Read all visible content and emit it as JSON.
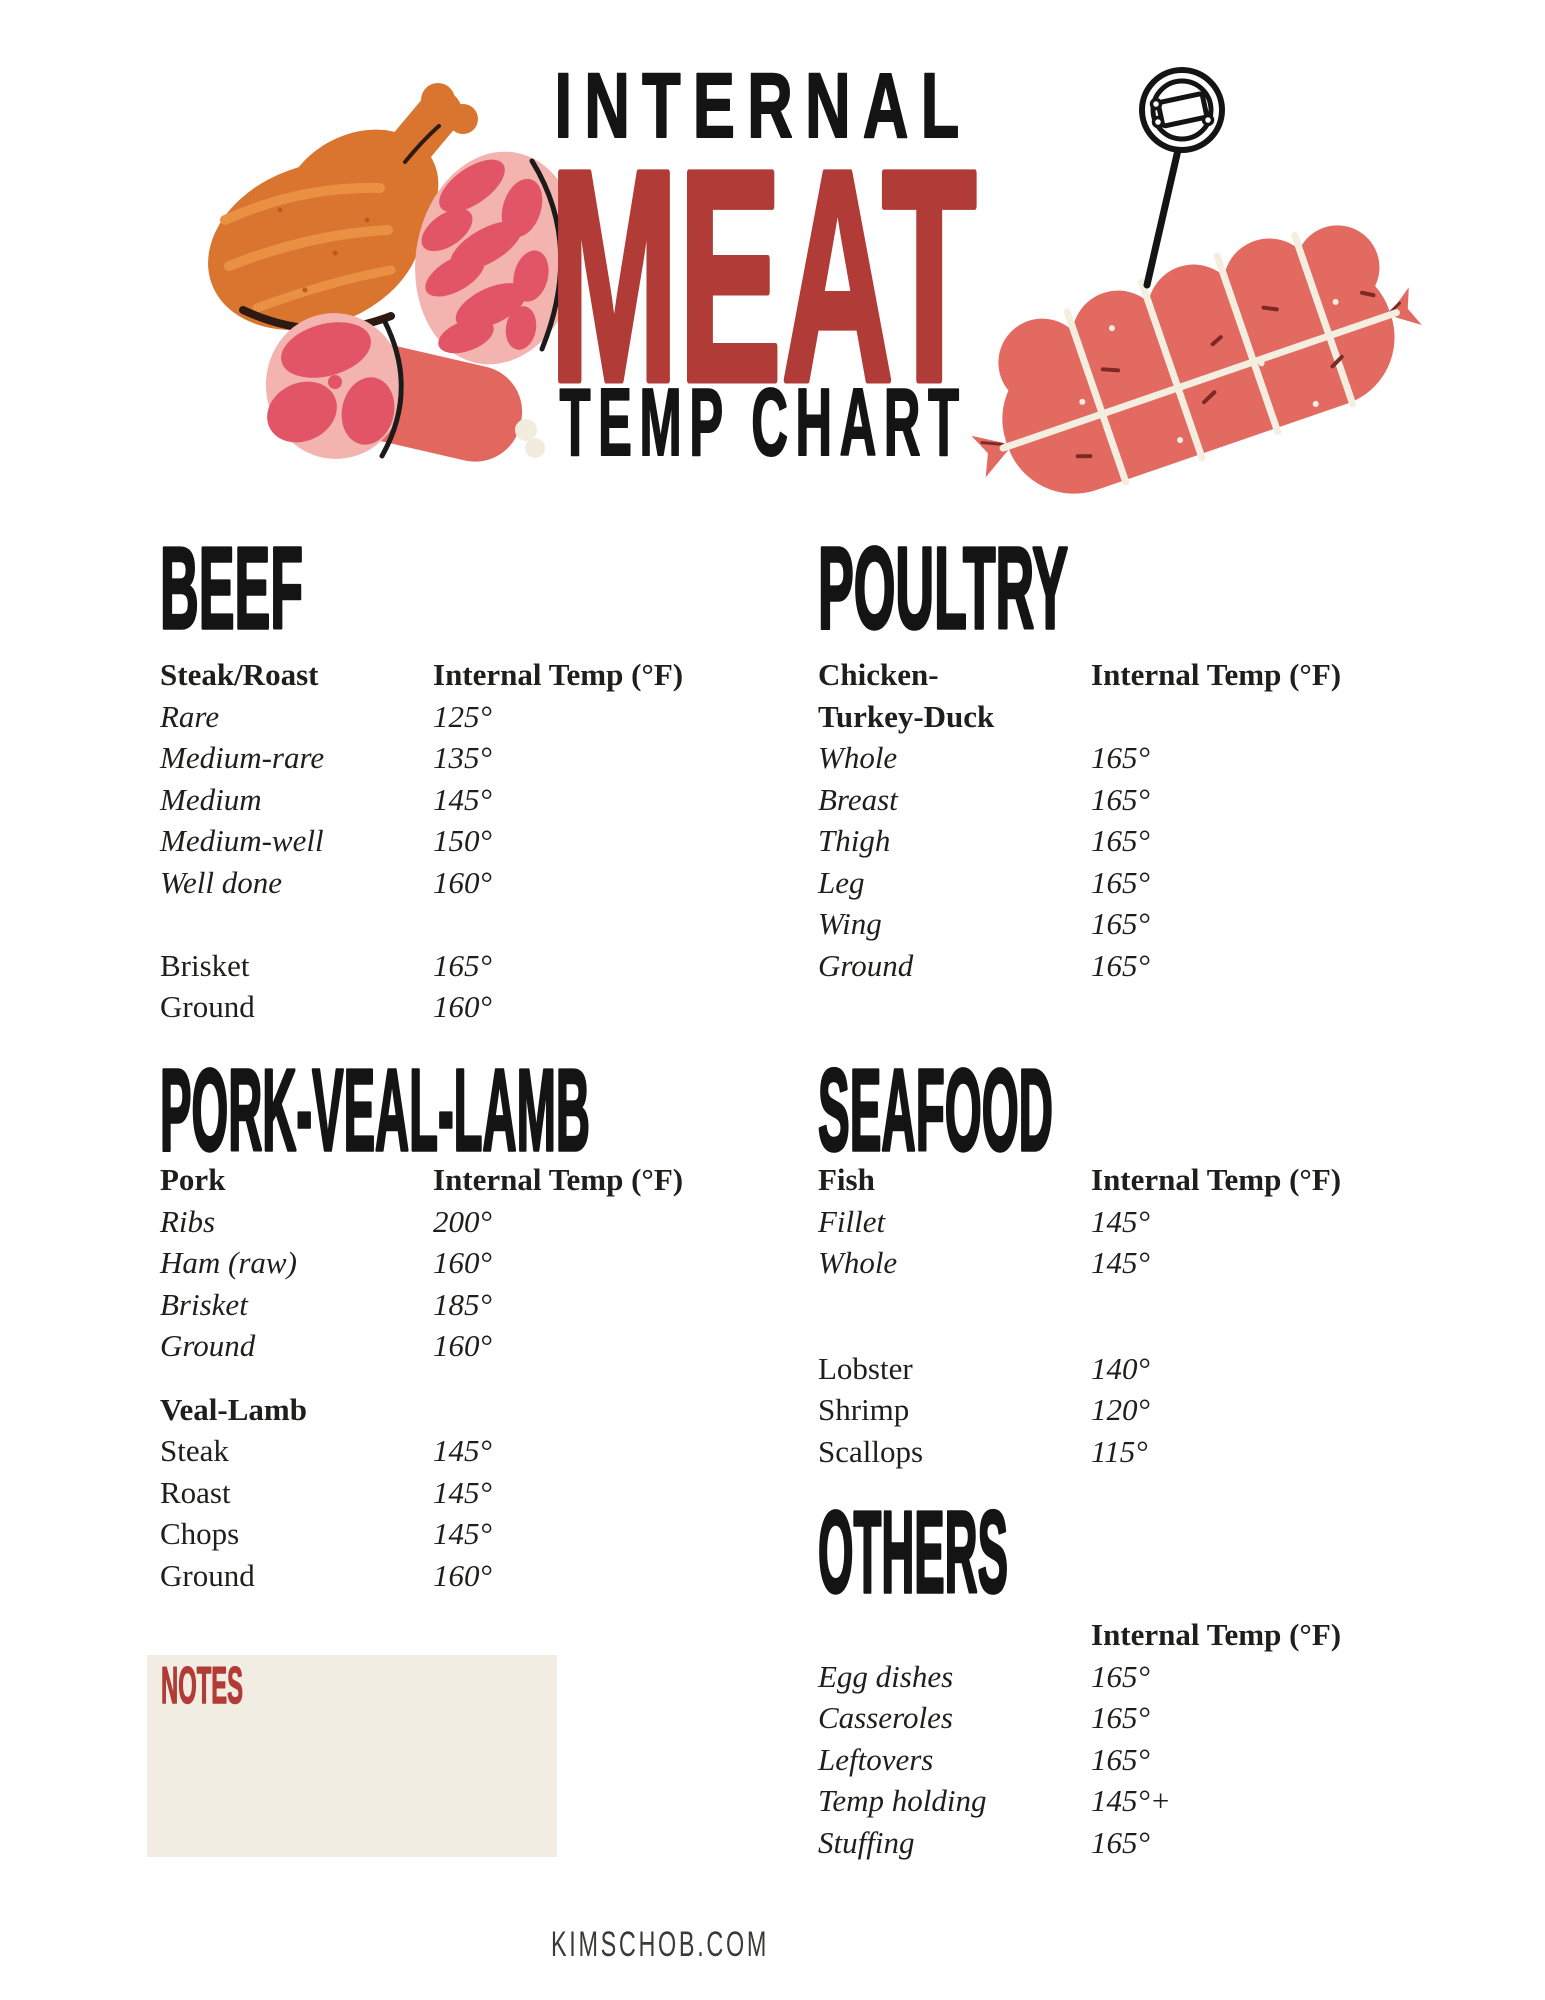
{
  "header": {
    "title_line1": "INTERNAL",
    "title_line2": "MEAT",
    "title_line3": "TEMP CHART"
  },
  "sections": {
    "beef": {
      "title": "BEEF",
      "rows": [
        {
          "l": "Steak/Roast",
          "t": "Internal Temp (°F)",
          "s": "bold"
        },
        {
          "l": "Rare",
          "t": "125°",
          "s": "italic"
        },
        {
          "l": "Medium-rare",
          "t": "135°",
          "s": "italic"
        },
        {
          "l": "Medium",
          "t": "145°",
          "s": "italic"
        },
        {
          "l": "Medium-well",
          "t": "150°",
          "s": "italic"
        },
        {
          "l": "Well done",
          "t": "160°",
          "s": "italic"
        },
        {
          "s": "blank"
        },
        {
          "l": "Brisket",
          "t": "165°",
          "s": "regular"
        },
        {
          "l": "Ground",
          "t": "160°",
          "s": "regular"
        }
      ]
    },
    "poultry": {
      "title": "POULTRY",
      "rows": [
        {
          "l": "Chicken-",
          "t": "Internal Temp (°F)",
          "s": "bold"
        },
        {
          "l": "Turkey-Duck",
          "t": "",
          "s": "bold"
        },
        {
          "l": "Whole",
          "t": "165°",
          "s": "italic"
        },
        {
          "l": "Breast",
          "t": "165°",
          "s": "italic"
        },
        {
          "l": "Thigh",
          "t": "165°",
          "s": "italic"
        },
        {
          "l": "Leg",
          "t": "165°",
          "s": "italic"
        },
        {
          "l": "Wing",
          "t": "165°",
          "s": "italic"
        },
        {
          "l": "Ground",
          "t": "165°",
          "s": "italic"
        }
      ]
    },
    "pork_veal_lamb": {
      "title": "PORK-VEAL-LAMB",
      "rows": [
        {
          "l": "Pork",
          "t": "Internal Temp (°F)",
          "s": "bold"
        },
        {
          "l": "Ribs",
          "t": "200°",
          "s": "italic"
        },
        {
          "l": "Ham (raw)",
          "t": "160°",
          "s": "italic"
        },
        {
          "l": "Brisket",
          "t": "185°",
          "s": "italic"
        },
        {
          "l": "Ground",
          "t": "160°",
          "s": "italic"
        },
        {
          "s": "blank",
          "h": 22
        },
        {
          "l": "Veal-Lamb",
          "t": "",
          "s": "bold"
        },
        {
          "l": "Steak",
          "t": "145°",
          "s": "regular"
        },
        {
          "l": "Roast",
          "t": "145°",
          "s": "regular"
        },
        {
          "l": "Chops",
          "t": "145°",
          "s": "regular"
        },
        {
          "l": "Ground",
          "t": "160°",
          "s": "regular"
        }
      ]
    },
    "seafood": {
      "title": "SEAFOOD",
      "rows": [
        {
          "l": "Fish",
          "t": "Internal Temp (°F)",
          "s": "bold"
        },
        {
          "l": "Fillet",
          "t": "145°",
          "s": "italic"
        },
        {
          "l": "Whole",
          "t": "145°",
          "s": "italic"
        },
        {
          "s": "blank",
          "h": 64
        },
        {
          "l": "Lobster",
          "t": "140°",
          "s": "regular"
        },
        {
          "l": "Shrimp",
          "t": "120°",
          "s": "regular"
        },
        {
          "l": "Scallops",
          "t": "115°",
          "s": "regular"
        }
      ]
    },
    "others": {
      "title": "OTHERS",
      "rows": [
        {
          "l": "",
          "t": "Internal Temp (°F)",
          "s": "bold"
        },
        {
          "l": "Egg dishes",
          "t": "165°",
          "s": "italic"
        },
        {
          "l": "Casseroles",
          "t": "165°",
          "s": "italic"
        },
        {
          "l": "Leftovers",
          "t": "165°",
          "s": "italic"
        },
        {
          "l": "Temp holding",
          "t": "145°+",
          "s": "italic"
        },
        {
          "l": "Stuffing",
          "t": "165°",
          "s": "italic"
        }
      ]
    }
  },
  "notes": {
    "label": "NOTES"
  },
  "footer": {
    "url": "KIMSCHOB.COM"
  },
  "colors": {
    "accent_red": "#b13b36",
    "ink": "#1e1e1c",
    "notes_bg": "#f2ede2",
    "chicken_orange": "#d9752f",
    "chicken_highlight": "#ea9043",
    "meat_pink_light": "#f3b4af",
    "meat_pink_dark": "#e15566",
    "roast_red": "#e26a60",
    "string_cream": "#f4eee1"
  }
}
